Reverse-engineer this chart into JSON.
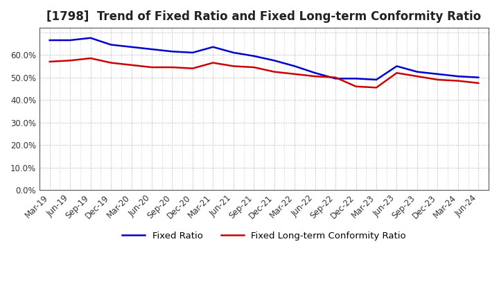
{
  "title": "[1798]  Trend of Fixed Ratio and Fixed Long-term Conformity Ratio",
  "labels": [
    "Mar-19",
    "Jun-19",
    "Sep-19",
    "Dec-19",
    "Mar-20",
    "Jun-20",
    "Sep-20",
    "Dec-20",
    "Mar-21",
    "Jun-21",
    "Sep-21",
    "Dec-21",
    "Mar-22",
    "Jun-22",
    "Sep-22",
    "Dec-22",
    "Mar-23",
    "Jun-23",
    "Sep-23",
    "Dec-23",
    "Mar-24",
    "Jun-24"
  ],
  "fixed_ratio": [
    66.5,
    66.5,
    67.5,
    64.5,
    63.5,
    62.5,
    61.5,
    61.0,
    63.5,
    61.0,
    59.5,
    57.5,
    55.0,
    52.0,
    49.5,
    49.5,
    49.0,
    55.0,
    52.5,
    51.5,
    50.5,
    50.0
  ],
  "fixed_lt_ratio": [
    57.0,
    57.5,
    58.5,
    56.5,
    55.5,
    54.5,
    54.5,
    54.0,
    56.5,
    55.0,
    54.5,
    52.5,
    51.5,
    50.5,
    50.0,
    46.0,
    45.5,
    52.0,
    50.5,
    49.0,
    48.5,
    47.5
  ],
  "fixed_ratio_color": "#0000cc",
  "fixed_lt_ratio_color": "#cc0000",
  "ylim": [
    0,
    72
  ],
  "yticks": [
    0,
    10,
    20,
    30,
    40,
    50,
    60,
    70
  ],
  "ytick_labels": [
    "0.0%",
    "10.0%",
    "20.0%",
    "30.0%",
    "40.0%",
    "50.0%",
    "60.0%",
    ""
  ],
  "legend_fixed": "Fixed Ratio",
  "legend_lt": "Fixed Long-term Conformity Ratio",
  "title_fontsize": 12,
  "axis_fontsize": 8.5,
  "legend_fontsize": 9.5,
  "line_width": 1.8,
  "bg_color": "#ffffff",
  "plot_bg_color": "#ffffff",
  "grid_color": "#aaaaaa",
  "border_color": "#555555"
}
